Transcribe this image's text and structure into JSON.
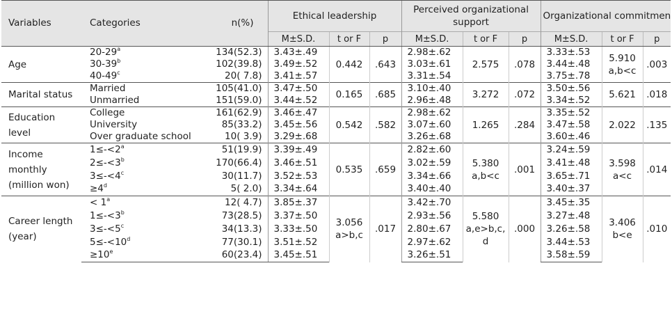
{
  "headers": {
    "variables": "Variables",
    "categories": "Categories",
    "n": "n(%)",
    "ethical": "Ethical leadership",
    "support": "Perceived organizational support",
    "commitment": "Organizational commitment",
    "ms": "M±S.D.",
    "t": "t or F",
    "p": "p"
  },
  "groups": [
    {
      "variable": "Age",
      "rows": [
        {
          "cat": "20-29",
          "sup": "a",
          "n": "134(52.3)",
          "e": "3.43±.49",
          "s": "2.98±.62",
          "c": "3.33±.53"
        },
        {
          "cat": "30-39",
          "sup": "b",
          "n": "102(39.8)",
          "e": "3.49±.52",
          "s": "3.03±.61",
          "c": "3.44±.48"
        },
        {
          "cat": "40-49",
          "sup": "c",
          "n": "20( 7.8)",
          "e": "3.41±.57",
          "s": "3.31±.54",
          "c": "3.75±.78"
        }
      ],
      "e_t": "0.442",
      "e_p": ".643",
      "s_t": "2.575",
      "s_p": ".078",
      "c_t": "5.910\na,b<c",
      "c_p": ".003"
    },
    {
      "variable": "Marital status",
      "rows": [
        {
          "cat": "Married",
          "sup": "",
          "n": "105(41.0)",
          "e": "3.47±.50",
          "s": "3.10±.40",
          "c": "3.50±.56"
        },
        {
          "cat": "Unmarried",
          "sup": "",
          "n": "151(59.0)",
          "e": "3.44±.52",
          "s": "2.96±.48",
          "c": "3.34±.52"
        }
      ],
      "e_t": "0.165",
      "e_p": ".685",
      "s_t": "3.272",
      "s_p": ".072",
      "c_t": "5.621",
      "c_p": ".018"
    },
    {
      "variable": "Education level",
      "rows": [
        {
          "cat": "College",
          "sup": "",
          "n": "161(62.9)",
          "e": "3.46±.47",
          "s": "2.98±.62",
          "c": "3.35±.52"
        },
        {
          "cat": "University",
          "sup": "",
          "n": "85(33.2)",
          "e": "3.45±.56",
          "s": "3.07±.60",
          "c": "3.47±.58"
        },
        {
          "cat": "Over graduate school",
          "sup": "",
          "n": "10( 3.9)",
          "e": "3.29±.68",
          "s": "3.26±.68",
          "c": "3.60±.46"
        }
      ],
      "e_t": "0.542",
      "e_p": ".582",
      "s_t": "1.265",
      "s_p": ".284",
      "c_t": "2.022",
      "c_p": ".135"
    },
    {
      "variable": "Income monthly (million won)",
      "rows": [
        {
          "cat": "1≤-<2",
          "sup": "a",
          "n": "51(19.9)",
          "e": "3.39±.49",
          "s": "2.82±.60",
          "c": "3.24±.59"
        },
        {
          "cat": "2≤-<3",
          "sup": "b",
          "n": "170(66.4)",
          "e": "3.46±.51",
          "s": "3.02±.59",
          "c": "3.41±.48"
        },
        {
          "cat": "3≤-<4",
          "sup": "c",
          "n": "30(11.7)",
          "e": "3.52±.53",
          "s": "3.34±.66",
          "c": "3.65±.71"
        },
        {
          "cat": "≥4",
          "sup": "d",
          "n": "5( 2.0)",
          "e": "3.34±.64",
          "s": "3.40±.40",
          "c": "3.40±.37"
        }
      ],
      "e_t": "0.535",
      "e_p": ".659",
      "s_t": "5.380\na,b<c",
      "s_p": ".001",
      "c_t": "3.598\na<c",
      "c_p": ".014"
    },
    {
      "variable": "Career length (year)",
      "rows": [
        {
          "cat": "< 1",
          "sup": "a",
          "n": "12( 4.7)",
          "e": "3.85±.37",
          "s": "3.42±.70",
          "c": "3.45±.35"
        },
        {
          "cat": "1≤-<3",
          "sup": "b",
          "n": "73(28.5)",
          "e": "3.37±.50",
          "s": "2.93±.56",
          "c": "3.27±.48"
        },
        {
          "cat": "3≤-<5",
          "sup": "c",
          "n": "34(13.3)",
          "e": "3.33±.50",
          "s": "2.80±.67",
          "c": "3.26±.58"
        },
        {
          "cat": "5≤-<10",
          "sup": "d",
          "n": "77(30.1)",
          "e": "3.51±.52",
          "s": "2.97±.62",
          "c": "3.44±.53"
        },
        {
          "cat": "≥10",
          "sup": "e",
          "n": "60(23.4)",
          "e": "3.45±.51",
          "s": "3.26±.51",
          "c": "3.58±.59"
        }
      ],
      "e_t": "3.056\na>b,c",
      "e_p": ".017",
      "s_t": "5.580\na,e>b,c,\nd",
      "s_p": ".000",
      "c_t": "3.406\nb<e",
      "c_p": ".010"
    }
  ]
}
